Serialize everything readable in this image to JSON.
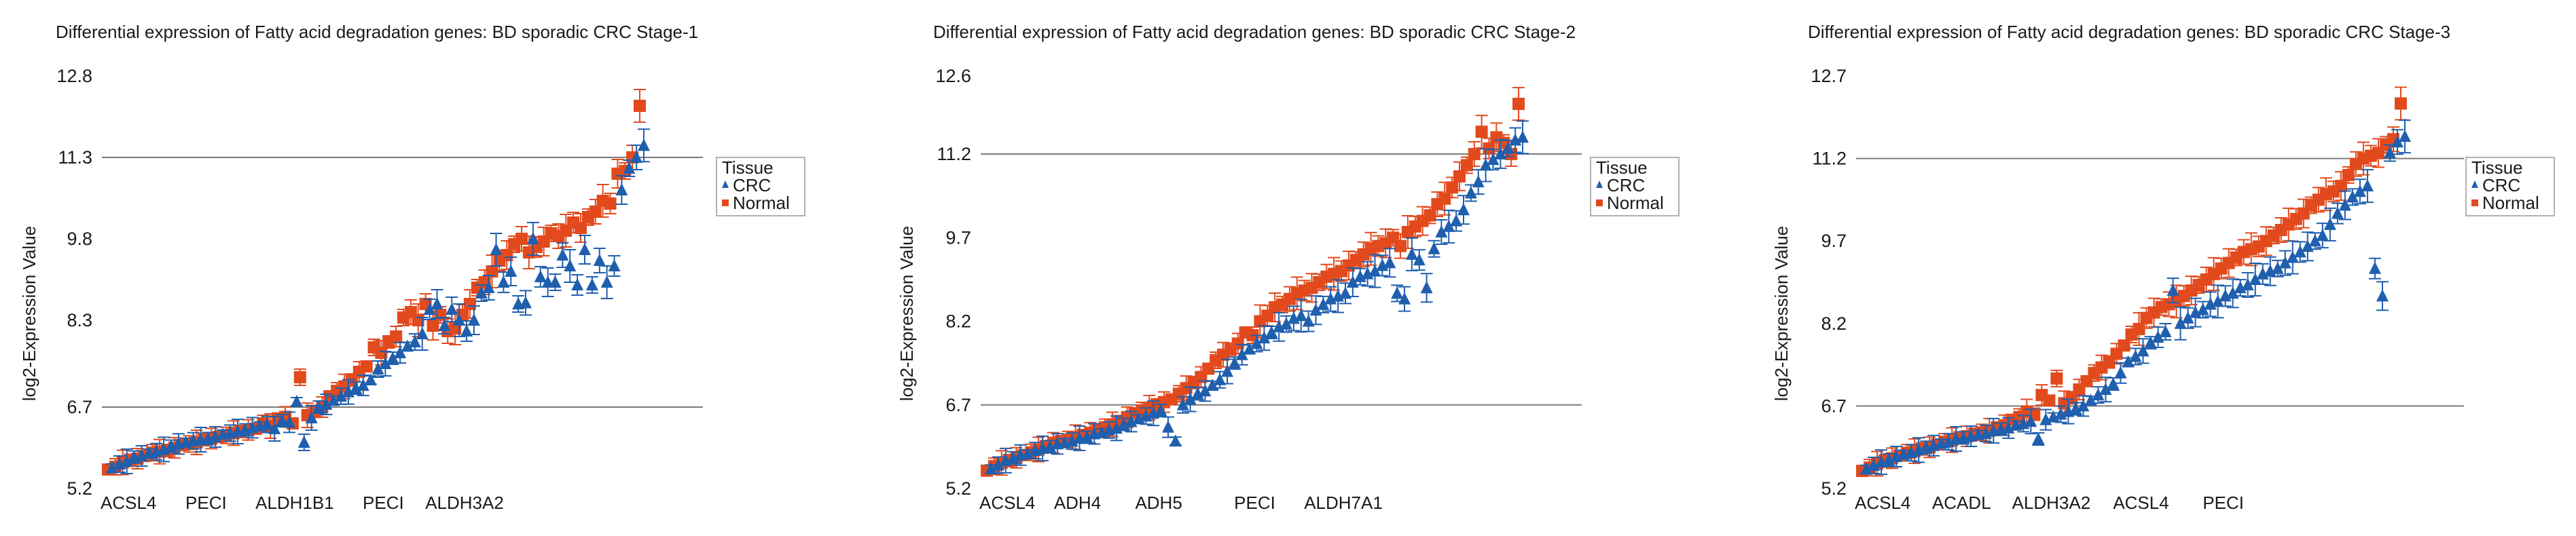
{
  "chart_data": [
    {
      "type": "scatter",
      "title": "Differential expression of Fatty acid degradation genes: BD sporadic CRC Stage-1",
      "ylabel": "log2-Expression Value",
      "xlabel": "",
      "ylim": [
        5.2,
        12.8
      ],
      "yticks": [
        "5.2",
        "6.7",
        "8.3",
        "9.8",
        "11.3",
        "12.8"
      ],
      "ytick_values": [
        5.2,
        6.7,
        8.3,
        9.8,
        11.3,
        12.8
      ],
      "gridlines": [
        6.7,
        11.3
      ],
      "xticks": [
        "ACSL4",
        "PECI",
        "ALDH1B1",
        "PECI",
        "ALDH3A2"
      ],
      "xtick_positions": [
        0,
        13,
        25,
        37,
        48
      ],
      "legend": {
        "title": "Tissue",
        "entries": [
          "CRC",
          "Normal"
        ]
      },
      "series": [
        {
          "name": "CRC",
          "color": "#1f5fae",
          "marker": "triangle",
          "values": [
            5.58,
            5.65,
            5.7,
            5.78,
            5.8,
            5.85,
            5.88,
            5.92,
            5.98,
            6.02,
            6.05,
            6.08,
            6.1,
            6.12,
            6.15,
            6.2,
            6.22,
            6.25,
            6.28,
            6.32,
            6.35,
            6.38,
            6.3,
            6.45,
            6.42,
            6.8,
            6.05,
            6.5,
            6.7,
            6.75,
            6.82,
            6.9,
            6.98,
            7.05,
            7.1,
            7.2,
            7.4,
            7.5,
            7.6,
            7.7,
            7.82,
            7.9,
            8.05,
            8.5,
            8.6,
            8.2,
            8.5,
            8.3,
            8.1,
            8.3,
            8.8,
            8.9,
            9.6,
            9.0,
            9.2,
            8.6,
            8.62,
            9.8,
            9.1,
            9.0,
            9.0,
            9.5,
            9.3,
            8.95,
            9.6,
            8.95,
            9.4,
            9.0,
            9.3,
            10.7,
            11.1,
            11.3,
            11.52
          ]
        },
        {
          "name": "Normal",
          "color": "#e24a1d",
          "marker": "square",
          "values": [
            5.55,
            5.6,
            5.68,
            5.72,
            5.75,
            5.8,
            5.86,
            5.88,
            5.9,
            5.95,
            6.0,
            6.02,
            6.05,
            6.1,
            6.12,
            6.15,
            6.18,
            6.22,
            6.25,
            6.28,
            6.3,
            6.4,
            6.35,
            6.48,
            6.52,
            6.4,
            7.25,
            6.55,
            6.62,
            6.7,
            6.9,
            7.0,
            7.08,
            7.2,
            7.35,
            7.45,
            7.8,
            7.7,
            7.9,
            8.0,
            8.35,
            8.45,
            8.3,
            8.6,
            8.2,
            8.4,
            8.1,
            8.15,
            8.4,
            8.6,
            8.9,
            9.0,
            9.2,
            9.4,
            9.5,
            9.7,
            9.8,
            9.55,
            9.65,
            9.75,
            9.9,
            9.85,
            9.95,
            10.1,
            10.0,
            10.2,
            10.3,
            10.5,
            10.45,
            11.0,
            11.05,
            11.3,
            12.25
          ]
        }
      ]
    },
    {
      "type": "scatter",
      "title": "Differential expression of Fatty acid degradation genes: BD sporadic CRC Stage-2",
      "ylabel": "log2-Expression Value",
      "xlabel": "",
      "ylim": [
        5.2,
        12.6
      ],
      "yticks": [
        "5.2",
        "6.7",
        "8.2",
        "9.7",
        "11.2",
        "12.6"
      ],
      "ytick_values": [
        5.2,
        6.7,
        8.2,
        9.7,
        11.2,
        12.6
      ],
      "gridlines": [
        6.7,
        11.2
      ],
      "xticks": [
        "ACSL4",
        "ADH4",
        "ADH5",
        "PECI",
        "ALDH7A1"
      ],
      "xtick_positions": [
        0,
        12,
        23,
        36,
        48
      ],
      "legend": {
        "title": "Tissue",
        "entries": [
          "CRC",
          "Normal"
        ]
      },
      "series": [
        {
          "name": "CRC",
          "color": "#1f5fae",
          "marker": "triangle",
          "values": [
            5.55,
            5.62,
            5.7,
            5.75,
            5.8,
            5.82,
            5.88,
            5.92,
            5.95,
            6.0,
            6.02,
            6.05,
            6.1,
            6.12,
            6.18,
            6.2,
            6.25,
            6.28,
            6.35,
            6.4,
            6.45,
            6.5,
            6.55,
            6.6,
            6.3,
            6.05,
            6.7,
            6.8,
            6.9,
            6.95,
            7.05,
            7.15,
            7.3,
            7.45,
            7.6,
            7.7,
            7.8,
            7.9,
            8.0,
            8.1,
            8.15,
            8.25,
            8.3,
            8.2,
            8.4,
            8.5,
            8.6,
            8.65,
            8.7,
            8.9,
            9.0,
            9.05,
            9.1,
            9.2,
            9.25,
            8.7,
            8.6,
            9.4,
            9.3,
            8.8,
            9.5,
            9.8,
            9.9,
            10.0,
            10.2,
            10.5,
            10.7,
            11.0,
            11.1,
            11.2,
            11.3,
            11.45,
            11.5
          ]
        },
        {
          "name": "Normal",
          "color": "#e24a1d",
          "marker": "square",
          "values": [
            5.52,
            5.6,
            5.66,
            5.7,
            5.75,
            5.8,
            5.85,
            5.9,
            5.95,
            6.02,
            6.05,
            6.08,
            6.12,
            6.15,
            6.2,
            6.25,
            6.3,
            6.35,
            6.4,
            6.48,
            6.55,
            6.6,
            6.65,
            6.7,
            6.75,
            6.8,
            6.9,
            7.0,
            7.1,
            7.2,
            7.35,
            7.5,
            7.6,
            7.7,
            7.8,
            8.0,
            7.95,
            8.2,
            8.3,
            8.45,
            8.5,
            8.6,
            8.7,
            8.75,
            8.8,
            8.9,
            9.0,
            9.05,
            9.1,
            9.2,
            9.3,
            9.4,
            9.5,
            9.55,
            9.6,
            9.7,
            9.55,
            9.8,
            9.9,
            10.0,
            10.1,
            10.3,
            10.4,
            10.6,
            10.8,
            11.0,
            11.2,
            11.6,
            11.3,
            11.5,
            11.4,
            11.2,
            12.1
          ]
        }
      ]
    },
    {
      "type": "scatter",
      "title": "Differential expression of Fatty acid degradation genes: BD sporadic CRC Stage-3",
      "ylabel": "log2-Expression Value",
      "xlabel": "",
      "ylim": [
        5.2,
        12.7
      ],
      "yticks": [
        "5.2",
        "6.7",
        "8.2",
        "9.7",
        "11.2",
        "12.7"
      ],
      "ytick_values": [
        5.2,
        6.7,
        8.2,
        9.7,
        11.2,
        12.7
      ],
      "gridlines": [
        6.7,
        11.2
      ],
      "xticks": [
        "ACSL4",
        "ACADL",
        "ALDH3A2",
        "ACSL4",
        "PECI"
      ],
      "xtick_positions": [
        0,
        13,
        25,
        37,
        48
      ],
      "legend": {
        "title": "Tissue",
        "entries": [
          "CRC",
          "Normal"
        ]
      },
      "series": [
        {
          "name": "CRC",
          "color": "#1f5fae",
          "marker": "triangle",
          "values": [
            5.55,
            5.62,
            5.68,
            5.72,
            5.78,
            5.82,
            5.85,
            5.9,
            5.95,
            5.98,
            6.02,
            6.05,
            6.1,
            6.12,
            6.15,
            6.18,
            6.2,
            6.25,
            6.28,
            6.3,
            6.35,
            6.38,
            6.42,
            6.1,
            6.45,
            6.5,
            6.55,
            6.6,
            6.65,
            6.7,
            6.8,
            6.9,
            7.0,
            7.1,
            7.3,
            7.5,
            7.6,
            7.7,
            7.85,
            7.95,
            8.05,
            8.8,
            8.2,
            8.3,
            8.4,
            8.45,
            8.55,
            8.6,
            8.7,
            8.75,
            8.85,
            8.9,
            9.0,
            9.1,
            9.15,
            9.2,
            9.3,
            9.4,
            9.5,
            9.6,
            9.7,
            9.8,
            10.0,
            10.2,
            10.35,
            10.5,
            10.6,
            10.7,
            9.2,
            8.7,
            11.3,
            11.5,
            11.6
          ]
        },
        {
          "name": "Normal",
          "color": "#e24a1d",
          "marker": "square",
          "values": [
            5.52,
            5.58,
            5.65,
            5.7,
            5.75,
            5.8,
            5.85,
            5.88,
            5.92,
            5.95,
            6.0,
            6.05,
            6.08,
            6.12,
            6.15,
            6.2,
            6.22,
            6.25,
            6.3,
            6.35,
            6.45,
            6.5,
            6.6,
            6.55,
            6.9,
            6.8,
            7.2,
            6.75,
            6.85,
            7.0,
            7.15,
            7.3,
            7.4,
            7.5,
            7.65,
            7.8,
            8.0,
            8.1,
            8.3,
            8.4,
            8.5,
            8.55,
            8.6,
            8.7,
            8.8,
            8.9,
            9.0,
            9.1,
            9.2,
            9.3,
            9.4,
            9.5,
            9.55,
            9.6,
            9.7,
            9.8,
            9.9,
            10.0,
            10.1,
            10.2,
            10.35,
            10.45,
            10.55,
            10.6,
            10.7,
            10.9,
            11.1,
            11.2,
            11.25,
            11.3,
            11.45,
            11.55,
            12.2
          ]
        }
      ]
    }
  ]
}
